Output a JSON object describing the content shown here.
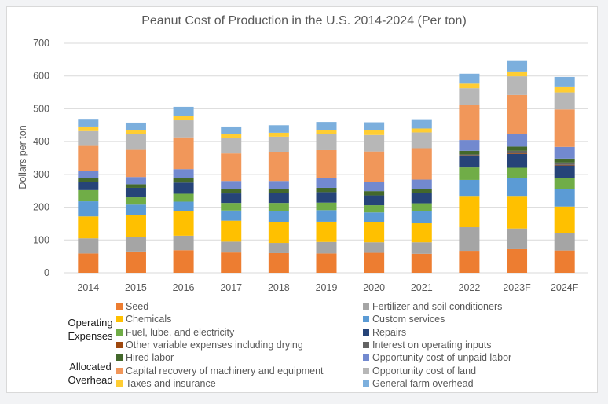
{
  "chart_data": {
    "type": "bar",
    "stacked": true,
    "title": "Peanut Cost of Production in the U.S. 2014-2024 (Per ton)",
    "xlabel": "",
    "ylabel": "Dollars per ton",
    "ylim": [
      0,
      700
    ],
    "yticks": [
      0,
      100,
      200,
      300,
      400,
      500,
      600,
      700
    ],
    "grid": true,
    "categories": [
      "2014",
      "2015",
      "2016",
      "2017",
      "2018",
      "2019",
      "2020",
      "2021",
      "2022",
      "2023F",
      "2024F"
    ],
    "series": [
      {
        "name": "Seed",
        "color": "#ed7d31",
        "group": "Operating Expenses",
        "values": [
          59,
          65,
          69,
          62,
          60,
          59,
          61,
          58,
          67,
          72,
          68
        ]
      },
      {
        "name": "Fertilizer and soil conditioners",
        "color": "#a5a5a5",
        "group": "Operating Expenses",
        "values": [
          46,
          45,
          44,
          33,
          31,
          35,
          32,
          35,
          72,
          63,
          52
        ]
      },
      {
        "name": "Chemicals",
        "color": "#ffc000",
        "group": "Operating Expenses",
        "values": [
          67,
          66,
          74,
          64,
          63,
          62,
          62,
          58,
          93,
          97,
          82
        ]
      },
      {
        "name": "Custom services",
        "color": "#5b9bd5",
        "group": "Operating Expenses",
        "values": [
          46,
          32,
          30,
          31,
          34,
          35,
          29,
          37,
          51,
          56,
          54
        ]
      },
      {
        "name": "Fuel, lube, and electricity",
        "color": "#70ad47",
        "group": "Operating Expenses",
        "values": [
          34,
          22,
          24,
          23,
          25,
          23,
          22,
          24,
          38,
          32,
          34
        ]
      },
      {
        "name": "Repairs",
        "color": "#264478",
        "group": "Operating Expenses",
        "values": [
          26,
          29,
          34,
          29,
          31,
          32,
          30,
          31,
          36,
          42,
          37
        ]
      },
      {
        "name": "Other variable expenses including drying",
        "color": "#9e480e",
        "group": "Operating Expenses",
        "values": [
          0,
          0,
          0,
          0,
          0,
          0,
          0,
          0,
          1,
          2,
          2
        ]
      },
      {
        "name": "Interest on operating inputs",
        "color": "#636363",
        "group": "Operating Expenses",
        "values": [
          0,
          0,
          0,
          0,
          0,
          0,
          0,
          0,
          3,
          8,
          7
        ]
      },
      {
        "name": "Hired labor",
        "color": "#43682b",
        "group": "Allocated Overhead",
        "values": [
          10,
          11,
          13,
          13,
          11,
          13,
          13,
          13,
          11,
          13,
          12
        ]
      },
      {
        "name": "Opportunity cost of unpaid labor",
        "color": "#7289cf",
        "group": "Allocated Overhead",
        "values": [
          22,
          22,
          28,
          25,
          25,
          29,
          29,
          28,
          33,
          37,
          36
        ]
      },
      {
        "name": "Capital recovery of machinery and equipment",
        "color": "#f1975a",
        "group": "Allocated Overhead",
        "values": [
          77,
          83,
          97,
          84,
          87,
          86,
          92,
          96,
          107,
          120,
          114
        ]
      },
      {
        "name": "Opportunity cost of land",
        "color": "#b7b7b7",
        "group": "Allocated Overhead",
        "values": [
          45,
          47,
          52,
          46,
          48,
          49,
          50,
          48,
          51,
          57,
          52
        ]
      },
      {
        "name": "Taxes and insurance",
        "color": "#ffcd33",
        "group": "Allocated Overhead",
        "values": [
          14,
          13,
          14,
          14,
          12,
          13,
          15,
          12,
          14,
          15,
          16
        ]
      },
      {
        "name": "General farm overhead",
        "color": "#7cafdd",
        "group": "Allocated Overhead",
        "values": [
          21,
          23,
          27,
          22,
          23,
          24,
          24,
          26,
          30,
          34,
          31
        ]
      }
    ],
    "legend": {
      "placement": "bottom",
      "groups": [
        "Operating\nExpenses",
        "Allocated\nOverhead"
      ]
    }
  },
  "legend_groups": {
    "operating_line1": "Operating",
    "operating_line2": "Expenses",
    "allocated_line1": "Allocated",
    "allocated_line2": "Overhead"
  }
}
